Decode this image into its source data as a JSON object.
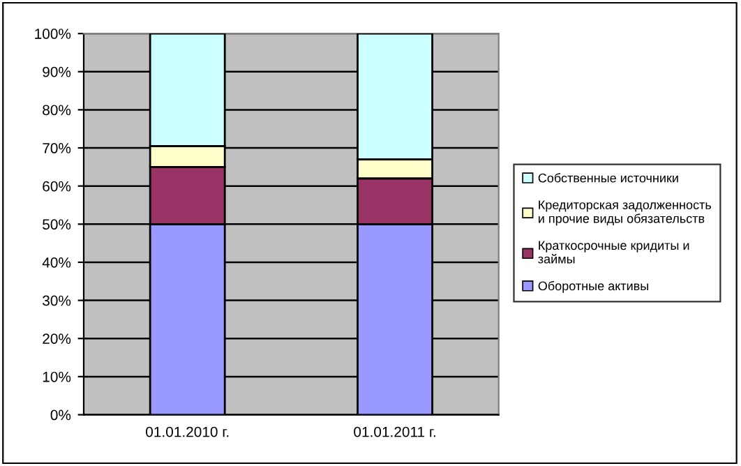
{
  "chart_data": {
    "type": "bar",
    "stacked": true,
    "categories": [
      "01.01.2010 г.",
      "01.01.2011 г."
    ],
    "series": [
      {
        "name": "Оборотные активы",
        "color": "#9999ff",
        "values": [
          50,
          50
        ]
      },
      {
        "name": "Краткосрочные кридиты и займы",
        "color": "#993366",
        "values": [
          15,
          12
        ]
      },
      {
        "name": "Кредиторская задолженность и прочие виды обязательств",
        "color": "#ffffcc",
        "values": [
          5.5,
          5
        ]
      },
      {
        "name": "Собственные источники",
        "color": "#ccffff",
        "values": [
          29.5,
          33
        ]
      }
    ],
    "ylim": [
      0,
      100
    ],
    "yticks": [
      {
        "value": 0,
        "label": "0%"
      },
      {
        "value": 10,
        "label": "10%"
      },
      {
        "value": 20,
        "label": "20%"
      },
      {
        "value": 30,
        "label": "30%"
      },
      {
        "value": 40,
        "label": "40%"
      },
      {
        "value": 50,
        "label": "50%"
      },
      {
        "value": 60,
        "label": "60%"
      },
      {
        "value": 70,
        "label": "70%"
      },
      {
        "value": 80,
        "label": "80%"
      },
      {
        "value": 90,
        "label": "90%"
      },
      {
        "value": 100,
        "label": "100%"
      }
    ],
    "grid": "y",
    "legend": "right"
  }
}
